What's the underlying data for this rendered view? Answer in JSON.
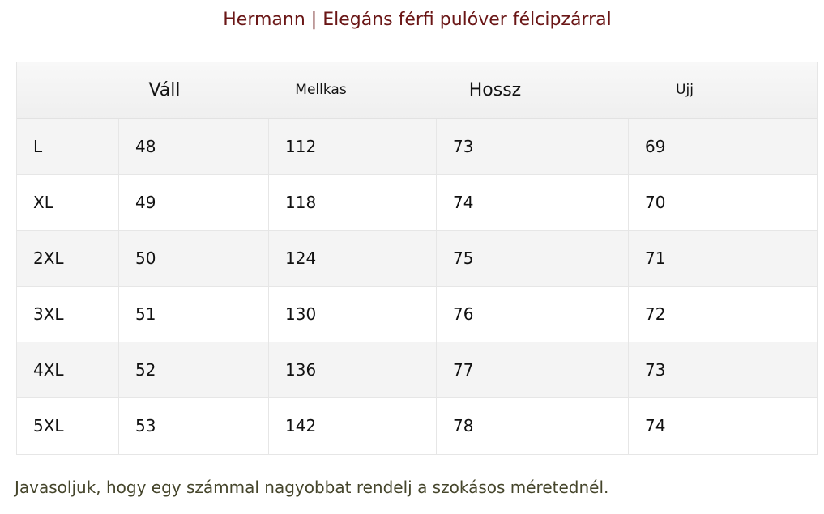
{
  "title": "Hermann | Elegáns férfi pulóver félcipzárral",
  "table": {
    "headers": [
      "",
      "Váll",
      "Mellkas",
      "Hossz",
      "Ujj"
    ],
    "rows": [
      [
        "L",
        "48",
        "112",
        "73",
        "69"
      ],
      [
        "XL",
        "49",
        "118",
        "74",
        "70"
      ],
      [
        "2XL",
        "50",
        "124",
        "75",
        "71"
      ],
      [
        "3XL",
        "51",
        "130",
        "76",
        "72"
      ],
      [
        "4XL",
        "52",
        "136",
        "77",
        "73"
      ],
      [
        "5XL",
        "53",
        "142",
        "78",
        "74"
      ]
    ]
  },
  "note": "Javasoljuk, hogy egy számmal nagyobbat rendelj a szokásos méretednél.",
  "colors": {
    "title": "#6a1616",
    "note": "#45452b",
    "row_alt": "#f4f4f4"
  }
}
